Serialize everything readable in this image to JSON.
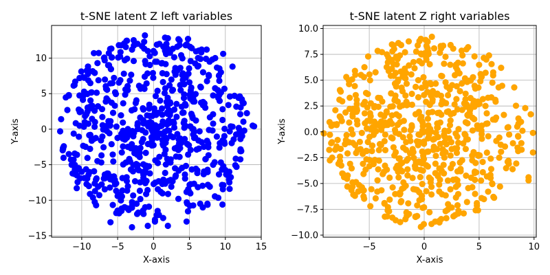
{
  "chart_data": [
    {
      "type": "scatter",
      "title": "t-SNE latent Z left variables",
      "xlabel": "X-axis",
      "ylabel": "Y-axis",
      "xlim": [
        -14.2,
        15.0
      ],
      "ylim": [
        -15.2,
        14.6
      ],
      "xticks": [
        -10,
        -5,
        0,
        5,
        10,
        15
      ],
      "yticks": [
        -15,
        -10,
        -5,
        0,
        5,
        10
      ],
      "grid": true,
      "series": [
        {
          "color": "#0000ff",
          "count": 650,
          "seed": 11,
          "radius": 13.2,
          "points": [
            [
              -13,
              -0.3
            ],
            [
              14,
              0.4
            ],
            [
              13.8,
              0.5
            ],
            [
              -12.5,
              -2.4
            ],
            [
              -12,
              2.7
            ],
            [
              -11.8,
              4.8
            ],
            [
              -11,
              6.2
            ],
            [
              -10.3,
              7.2
            ],
            [
              -9.8,
              7.3
            ],
            [
              -11.8,
              -3.5
            ],
            [
              -11.5,
              -4.3
            ],
            [
              -10.7,
              -8.3
            ],
            [
              -11,
              -6.3
            ],
            [
              -10,
              -6
            ],
            [
              -9,
              -8
            ],
            [
              -8,
              -10.7
            ],
            [
              -6,
              -13.1
            ],
            [
              -3,
              -13.8
            ],
            [
              0.2,
              -13
            ],
            [
              -0.8,
              -13.6
            ],
            [
              2,
              -13.6
            ],
            [
              4.6,
              -13
            ],
            [
              6.5,
              -10.5
            ],
            [
              7.5,
              -10.5
            ],
            [
              9.6,
              -10.6
            ],
            [
              10.6,
              -8.4
            ],
            [
              12.1,
              -3.1
            ],
            [
              12,
              -0.5
            ],
            [
              12.4,
              3.8
            ],
            [
              12.3,
              4.2
            ],
            [
              11,
              8.8
            ],
            [
              9.7,
              10.6
            ],
            [
              7.4,
              11.2
            ],
            [
              6.7,
              11.2
            ],
            [
              4.8,
              12.7
            ],
            [
              2,
              12.8
            ],
            [
              -1.2,
              13.2
            ],
            [
              -1.3,
              12.3
            ],
            [
              -4.5,
              11.8
            ],
            [
              -4,
              9.7
            ],
            [
              -6.2,
              9
            ],
            [
              -7.8,
              9.3
            ],
            [
              -8.3,
              10.7
            ],
            [
              -5.8,
              10.1
            ],
            [
              -3,
              11.2
            ],
            [
              0,
              11
            ],
            [
              1.8,
              12
            ],
            [
              3.3,
              11.6
            ],
            [
              -0.8,
              11
            ]
          ]
        }
      ]
    },
    {
      "type": "scatter",
      "title": "t-SNE latent Z right variables",
      "xlabel": "X-axis",
      "ylabel": "Y-axis",
      "xlim": [
        -9.2,
        10.2
      ],
      "ylim": [
        -10.2,
        10.3
      ],
      "xticks": [
        -5,
        0,
        5,
        10
      ],
      "yticks": [
        -10.0,
        -7.5,
        -5.0,
        -2.5,
        0.0,
        2.5,
        5.0,
        7.5,
        10.0
      ],
      "grid": true,
      "series": [
        {
          "color": "#ffa500",
          "count": 650,
          "seed": 29,
          "radius": 9.0,
          "points": [
            [
              -0.3,
              9.0
            ],
            [
              0.7,
              9.2
            ],
            [
              2.4,
              8.4
            ],
            [
              4,
              8.2
            ],
            [
              -2.1,
              8.4
            ],
            [
              -3.4,
              7.5
            ],
            [
              -5.1,
              7.3
            ],
            [
              -6.3,
              5.9
            ],
            [
              -7.6,
              3.9
            ],
            [
              -8.2,
              0.7
            ],
            [
              -8.4,
              -1
            ],
            [
              -7.8,
              -3.1
            ],
            [
              -6.3,
              -6.2
            ],
            [
              -4.9,
              -7.2
            ],
            [
              -2.9,
              -8.3
            ],
            [
              -0.3,
              -9.2
            ],
            [
              1.4,
              -8.6
            ],
            [
              3.6,
              -7.9
            ],
            [
              4.9,
              -7.6
            ],
            [
              6.3,
              -6.3
            ],
            [
              7.7,
              -3.1
            ],
            [
              9.9,
              -2
            ],
            [
              9.9,
              -0.1
            ],
            [
              9.7,
              1.7
            ],
            [
              9.2,
              2.3
            ],
            [
              8.2,
              4.3
            ],
            [
              7,
              6.2
            ],
            [
              5.9,
              7.4
            ],
            [
              5.2,
              5.3
            ],
            [
              2.9,
              6.5
            ],
            [
              9.5,
              -4.7
            ],
            [
              9.5,
              -4.4
            ],
            [
              3.9,
              -6.8
            ],
            [
              -3.2,
              -7.7
            ],
            [
              -0.8,
              -8.2
            ]
          ]
        }
      ]
    }
  ]
}
